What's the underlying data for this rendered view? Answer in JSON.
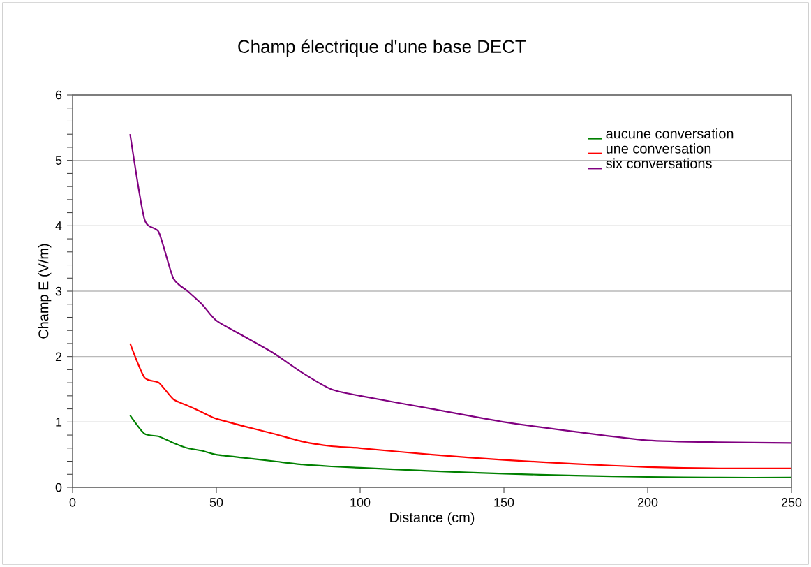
{
  "chart_data": {
    "type": "line",
    "title": "Champ électrique d'une base DECT",
    "xlabel": "Distance (cm)",
    "ylabel": "Champ E (V/m)",
    "xlim": [
      0,
      250
    ],
    "xticks": [
      0,
      50,
      100,
      150,
      200,
      250
    ],
    "ylim": [
      0,
      6
    ],
    "yticks": [
      0,
      {
        "value": 0.2,
        "label": null
      },
      {
        "value": 0.4,
        "label": null
      },
      {
        "value": 0.6,
        "label": null
      },
      {
        "value": 0.8,
        "label": null
      },
      1,
      {
        "value": 1.2,
        "label": null
      },
      {
        "value": 1.4,
        "label": null
      },
      {
        "value": 1.6,
        "label": null
      },
      {
        "value": 1.8,
        "label": null
      },
      2,
      {
        "value": 2.2,
        "label": null
      },
      {
        "value": 2.4,
        "label": null
      },
      {
        "value": 2.6,
        "label": null
      },
      {
        "value": 2.8,
        "label": null
      },
      3,
      {
        "value": 3.2,
        "label": null
      },
      {
        "value": 3.4,
        "label": null
      },
      {
        "value": 3.6,
        "label": null
      },
      {
        "value": 3.8,
        "label": null
      },
      4,
      {
        "value": 4.2,
        "label": null
      },
      {
        "value": 4.4,
        "label": null
      },
      {
        "value": 4.6,
        "label": null
      },
      {
        "value": 4.8,
        "label": null
      },
      5,
      {
        "value": 5.2,
        "label": null
      },
      {
        "value": 5.4,
        "label": null
      },
      {
        "value": 5.6,
        "label": null
      },
      {
        "value": 5.8,
        "label": null
      },
      6
    ],
    "grid": "y",
    "legend": "top right",
    "marker": "none",
    "line_style": "solid",
    "x": [
      20,
      25,
      30,
      35,
      40,
      45,
      50,
      60,
      70,
      80,
      90,
      100,
      125,
      150,
      175,
      200,
      225,
      250
    ],
    "series": [
      {
        "name": "aucune conversation",
        "color": "#008000",
        "values": [
          1.1,
          0.82,
          0.78,
          0.68,
          0.6,
          0.56,
          0.5,
          0.45,
          0.4,
          0.35,
          0.32,
          0.3,
          0.25,
          0.21,
          0.18,
          0.16,
          0.15,
          0.15
        ]
      },
      {
        "name": "une conversation",
        "color": "#ff0000",
        "values": [
          2.2,
          1.68,
          1.6,
          1.35,
          1.25,
          1.15,
          1.05,
          0.93,
          0.82,
          0.7,
          0.63,
          0.6,
          0.5,
          0.42,
          0.36,
          0.31,
          0.29,
          0.29
        ]
      },
      {
        "name": "six conversations",
        "color": "#800080",
        "values": [
          5.4,
          4.1,
          3.9,
          3.2,
          3.0,
          2.8,
          2.55,
          2.3,
          2.05,
          1.75,
          1.5,
          1.4,
          1.2,
          1.0,
          0.85,
          0.72,
          0.69,
          0.68
        ]
      }
    ]
  }
}
